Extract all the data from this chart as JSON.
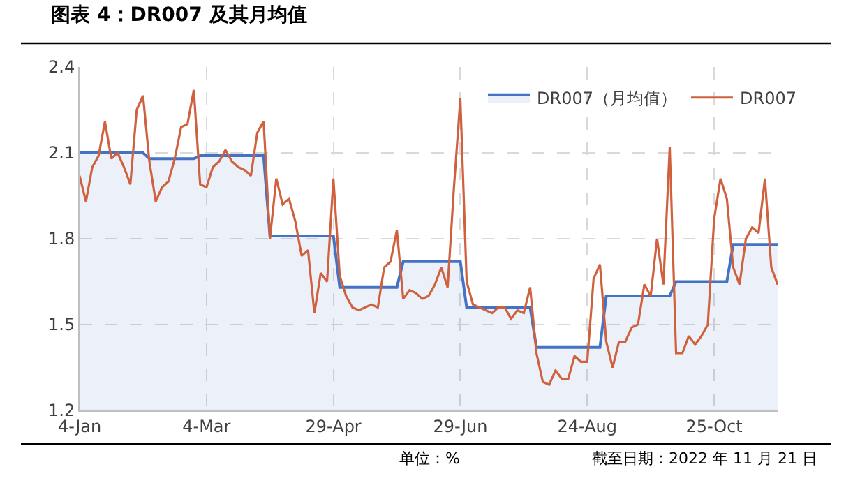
{
  "chart_data": {
    "type": "line",
    "title": "图表 4：DR007 及其月均值",
    "categories": [
      "4-Jan",
      null,
      null,
      null,
      null,
      null,
      null,
      null,
      null,
      null,
      null,
      null,
      null,
      null,
      null,
      null,
      null,
      null,
      null,
      null,
      "4-Mar",
      null,
      null,
      null,
      null,
      null,
      null,
      null,
      null,
      null,
      null,
      null,
      null,
      null,
      null,
      null,
      null,
      null,
      null,
      null,
      "29-Apr",
      null,
      null,
      null,
      null,
      null,
      null,
      null,
      null,
      null,
      null,
      null,
      null,
      null,
      null,
      null,
      null,
      null,
      null,
      null,
      "29-Jun",
      null,
      null,
      null,
      null,
      null,
      null,
      null,
      null,
      null,
      null,
      null,
      null,
      null,
      null,
      null,
      null,
      null,
      null,
      null,
      "24-Aug",
      null,
      null,
      null,
      null,
      null,
      null,
      null,
      null,
      null,
      null,
      null,
      null,
      null,
      null,
      null,
      null,
      null,
      null,
      null,
      "25-Oct",
      null,
      null,
      null,
      null,
      null,
      null,
      null,
      null,
      null,
      null
    ],
    "series": [
      {
        "name": "DR007（月均值）",
        "type": "area",
        "color": "#4472c4",
        "values": [
          2.1,
          2.1,
          2.1,
          2.1,
          2.1,
          2.1,
          2.1,
          2.1,
          2.1,
          2.1,
          2.1,
          2.08,
          2.08,
          2.08,
          2.08,
          2.08,
          2.08,
          2.08,
          2.08,
          2.09,
          2.09,
          2.09,
          2.09,
          2.09,
          2.09,
          2.09,
          2.09,
          2.09,
          2.09,
          2.09,
          1.81,
          1.81,
          1.81,
          1.81,
          1.81,
          1.81,
          1.81,
          1.81,
          1.81,
          1.81,
          1.81,
          1.63,
          1.63,
          1.63,
          1.63,
          1.63,
          1.63,
          1.63,
          1.63,
          1.63,
          1.63,
          1.72,
          1.72,
          1.72,
          1.72,
          1.72,
          1.72,
          1.72,
          1.72,
          1.72,
          1.72,
          1.56,
          1.56,
          1.56,
          1.56,
          1.56,
          1.56,
          1.56,
          1.56,
          1.56,
          1.56,
          1.56,
          1.42,
          1.42,
          1.42,
          1.42,
          1.42,
          1.42,
          1.42,
          1.42,
          1.42,
          1.42,
          1.42,
          1.6,
          1.6,
          1.6,
          1.6,
          1.6,
          1.6,
          1.6,
          1.6,
          1.6,
          1.6,
          1.6,
          1.65,
          1.65,
          1.65,
          1.65,
          1.65,
          1.65,
          1.65,
          1.65,
          1.65,
          1.78,
          1.78,
          1.78,
          1.78,
          1.78,
          1.78,
          1.78,
          1.78
        ]
      },
      {
        "name": "DR007",
        "color": "#d0613f",
        "values": [
          2.02,
          1.93,
          2.05,
          2.09,
          2.21,
          2.08,
          2.1,
          2.05,
          1.99,
          2.25,
          2.3,
          2.07,
          1.93,
          1.98,
          2.0,
          2.08,
          2.19,
          2.2,
          2.32,
          1.99,
          1.98,
          2.05,
          2.07,
          2.11,
          2.07,
          2.05,
          2.04,
          2.02,
          2.17,
          2.21,
          1.8,
          2.01,
          1.92,
          1.94,
          1.86,
          1.74,
          1.76,
          1.54,
          1.68,
          1.65,
          2.01,
          1.67,
          1.6,
          1.56,
          1.55,
          1.56,
          1.57,
          1.56,
          1.7,
          1.72,
          1.83,
          1.59,
          1.62,
          1.61,
          1.59,
          1.6,
          1.64,
          1.7,
          1.63,
          1.98,
          2.29,
          1.65,
          1.57,
          1.56,
          1.55,
          1.54,
          1.56,
          1.56,
          1.52,
          1.55,
          1.54,
          1.63,
          1.4,
          1.3,
          1.29,
          1.34,
          1.31,
          1.31,
          1.39,
          1.37,
          1.37,
          1.66,
          1.71,
          1.44,
          1.35,
          1.44,
          1.44,
          1.49,
          1.5,
          1.64,
          1.6,
          1.8,
          1.64,
          2.12,
          1.4,
          1.4,
          1.46,
          1.43,
          1.46,
          1.5,
          1.87,
          2.01,
          1.94,
          1.7,
          1.64,
          1.8,
          1.84,
          1.82,
          2.01,
          1.7,
          1.64
        ]
      }
    ],
    "ylim": [
      1.2,
      2.4
    ],
    "yticks": [
      1.2,
      1.5,
      1.8,
      2.1,
      2.4
    ],
    "grid": true,
    "legend": "top right",
    "line_style": "solid",
    "marker": "none",
    "annotations": [
      "单位：%",
      "截至日期：2022 年 11 月 21 日"
    ]
  }
}
